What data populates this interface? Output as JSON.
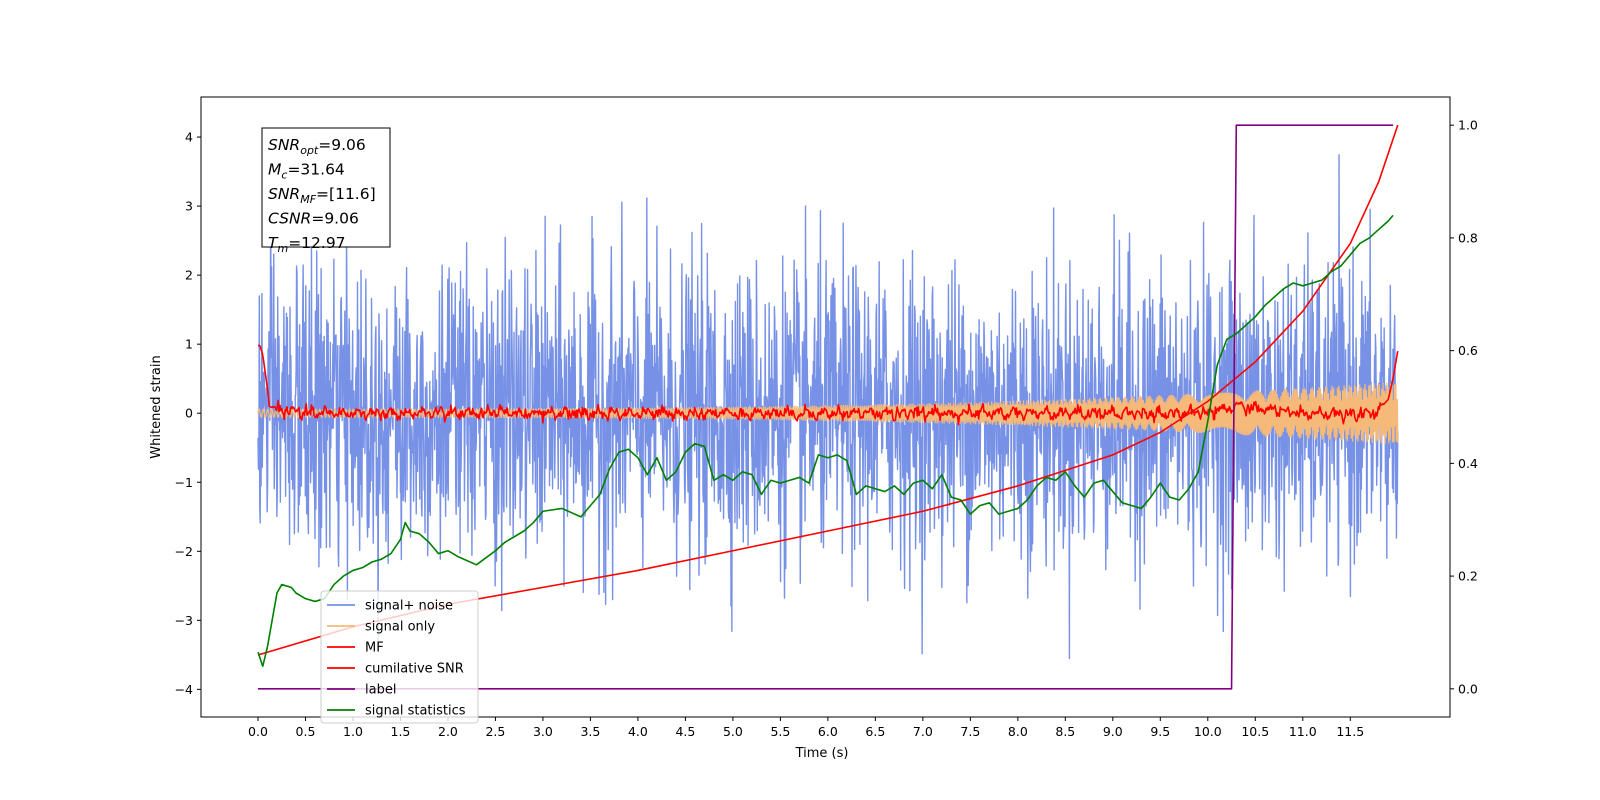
{
  "chart_data": {
    "type": "line",
    "title": "",
    "xlabel": "Time (s)",
    "ylabel_left": "Whitened strain",
    "ylabel_right": "",
    "xlim": [
      -0.6,
      12.55
    ],
    "ylim_left": [
      -4.4,
      4.58
    ],
    "ylim_right": [
      -0.05,
      1.05
    ],
    "grid": false,
    "legend_position": "lower-left",
    "xticks": [
      "0.0",
      "0.5",
      "1.0",
      "1.5",
      "2.0",
      "2.5",
      "3.0",
      "3.5",
      "4.0",
      "4.5",
      "5.0",
      "5.5",
      "6.0",
      "6.5",
      "7.0",
      "7.5",
      "8.0",
      "8.5",
      "9.0",
      "9.5",
      "10.0",
      "10.5",
      "11.0",
      "11.5"
    ],
    "yticks_left": [
      "4",
      "3",
      "2",
      "1",
      "0",
      "−1",
      "−2",
      "−3",
      "−4"
    ],
    "yticks_right": [
      "1.0",
      "0.8",
      "0.6",
      "0.4",
      "0.2",
      "0.0"
    ],
    "textbox": [
      {
        "sym": "SNR",
        "sub": "opt",
        "val": "=9.06"
      },
      {
        "sym": "M",
        "sub": "c",
        "val": "=31.64"
      },
      {
        "sym": "SNR",
        "sub": "MF",
        "val": "=[11.6]"
      },
      {
        "sym": "CSNR",
        "sub": "",
        "val": "=9.06"
      },
      {
        "sym": "T",
        "sub": "m",
        "val": "=12.97"
      }
    ],
    "series": [
      {
        "name": "signal+ noise",
        "color": "#7691e6",
        "axis": "left",
        "kind": "noise",
        "t_start": 0.0,
        "t_end": 12.0,
        "std": 1.05,
        "min": -3.85,
        "max": 4.18
      },
      {
        "name": "signal only",
        "color": "#f5b97a",
        "axis": "left",
        "kind": "chirp",
        "t_start": 0.0,
        "t_end": 12.0,
        "amp_start": 0.06,
        "amp_end": 0.45
      },
      {
        "name": "MF",
        "color": "#ff0000",
        "axis": "left",
        "kind": "mf",
        "t": [
          0.0,
          0.02,
          0.05,
          0.1,
          0.12,
          0.2,
          0.5,
          1.0,
          1.5,
          2.0,
          4.7,
          7.0,
          10.0,
          10.3,
          11.0,
          11.7,
          11.8,
          11.9,
          11.95,
          12.0
        ],
        "y": [
          0.98,
          0.98,
          0.85,
          0.35,
          0.1,
          0.05,
          0.0,
          0.0,
          0.0,
          0.0,
          0.0,
          0.0,
          0.0,
          0.1,
          0.0,
          0.0,
          0.05,
          0.2,
          0.5,
          0.9
        ]
      },
      {
        "name": "cumilative SNR",
        "color": "#ff0000",
        "axis": "right",
        "kind": "curve",
        "t": [
          0.0,
          1.0,
          2.0,
          3.0,
          4.0,
          5.0,
          6.0,
          7.0,
          8.0,
          9.0,
          9.5,
          10.0,
          10.5,
          11.0,
          11.5,
          11.8,
          12.0
        ],
        "y": [
          0.06,
          0.11,
          0.15,
          0.18,
          0.21,
          0.245,
          0.28,
          0.315,
          0.36,
          0.415,
          0.455,
          0.51,
          0.58,
          0.67,
          0.79,
          0.9,
          1.0
        ]
      },
      {
        "name": "label",
        "color": "#800080",
        "axis": "right",
        "kind": "curve",
        "t": [
          0.0,
          10.25,
          10.3,
          11.95
        ],
        "y": [
          0.0,
          0.0,
          1.0,
          1.0
        ]
      },
      {
        "name": "signal statistics",
        "color": "#008000",
        "axis": "right",
        "kind": "curve",
        "t": [
          0.0,
          0.05,
          0.1,
          0.2,
          0.25,
          0.35,
          0.4,
          0.5,
          0.6,
          0.7,
          0.8,
          0.9,
          1.0,
          1.1,
          1.2,
          1.3,
          1.4,
          1.5,
          1.55,
          1.6,
          1.7,
          1.8,
          1.9,
          2.0,
          2.1,
          2.3,
          2.5,
          2.6,
          2.8,
          2.9,
          3.0,
          3.2,
          3.4,
          3.6,
          3.7,
          3.8,
          3.9,
          4.0,
          4.1,
          4.2,
          4.3,
          4.4,
          4.5,
          4.6,
          4.7,
          4.8,
          4.9,
          5.0,
          5.1,
          5.2,
          5.3,
          5.4,
          5.5,
          5.6,
          5.7,
          5.8,
          5.9,
          6.0,
          6.1,
          6.2,
          6.3,
          6.4,
          6.5,
          6.6,
          6.7,
          6.8,
          6.9,
          7.0,
          7.1,
          7.2,
          7.3,
          7.4,
          7.5,
          7.6,
          7.7,
          7.8,
          7.9,
          8.0,
          8.1,
          8.2,
          8.3,
          8.4,
          8.5,
          8.6,
          8.7,
          8.8,
          8.9,
          9.0,
          9.1,
          9.2,
          9.3,
          9.4,
          9.5,
          9.6,
          9.7,
          9.8,
          9.9,
          10.0,
          10.1,
          10.2,
          10.3,
          10.4,
          10.5,
          10.6,
          10.7,
          10.8,
          10.9,
          11.0,
          11.1,
          11.2,
          11.3,
          11.4,
          11.5,
          11.6,
          11.7,
          11.8,
          11.9,
          11.95
        ],
        "y": [
          0.065,
          0.04,
          0.075,
          0.17,
          0.185,
          0.18,
          0.17,
          0.16,
          0.155,
          0.16,
          0.185,
          0.2,
          0.21,
          0.215,
          0.225,
          0.23,
          0.24,
          0.265,
          0.295,
          0.28,
          0.275,
          0.26,
          0.24,
          0.245,
          0.235,
          0.22,
          0.245,
          0.26,
          0.28,
          0.295,
          0.315,
          0.32,
          0.305,
          0.345,
          0.39,
          0.42,
          0.425,
          0.41,
          0.38,
          0.41,
          0.37,
          0.385,
          0.42,
          0.435,
          0.43,
          0.37,
          0.38,
          0.37,
          0.385,
          0.38,
          0.345,
          0.37,
          0.365,
          0.37,
          0.375,
          0.365,
          0.415,
          0.41,
          0.415,
          0.405,
          0.345,
          0.36,
          0.355,
          0.35,
          0.36,
          0.345,
          0.365,
          0.37,
          0.355,
          0.38,
          0.34,
          0.335,
          0.31,
          0.325,
          0.33,
          0.31,
          0.315,
          0.32,
          0.335,
          0.36,
          0.375,
          0.37,
          0.385,
          0.36,
          0.34,
          0.365,
          0.37,
          0.35,
          0.33,
          0.325,
          0.32,
          0.34,
          0.365,
          0.34,
          0.335,
          0.355,
          0.385,
          0.475,
          0.575,
          0.62,
          0.63,
          0.645,
          0.66,
          0.68,
          0.695,
          0.71,
          0.72,
          0.715,
          0.72,
          0.725,
          0.74,
          0.75,
          0.77,
          0.79,
          0.8,
          0.815,
          0.83,
          0.84
        ]
      }
    ]
  }
}
